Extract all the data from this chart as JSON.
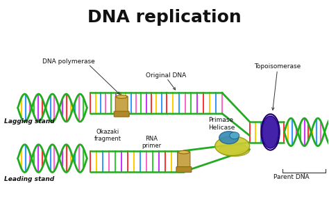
{
  "title": "DNA replication",
  "title_fontsize": 18,
  "title_fontweight": "bold",
  "background_color": "#ffffff",
  "labels": {
    "dna_polymerase": "DNA polymerase",
    "original_dna": "Original DNA",
    "okazaki_fragment": "Okazaki\nfragment",
    "rna_primer": "RNA\nprimer",
    "primase": "Primase",
    "helicase": "Helicase",
    "topoisomerase": "Topoisomerase",
    "parent_dna": "Parent DNA",
    "lagging_stand": "Lagging stand",
    "leading_stand": "Leading stand"
  },
  "dna_colors": [
    "#ff3333",
    "#ffcc00",
    "#3399ff",
    "#ff66cc",
    "#33cc33",
    "#cc33ff"
  ],
  "backbone_color": "#22aa22",
  "polymerase_color": "#c8a44a",
  "topoisomerase_color": "#4422aa",
  "helicase_color": "#cccc33",
  "primase_color": "#3388bb"
}
